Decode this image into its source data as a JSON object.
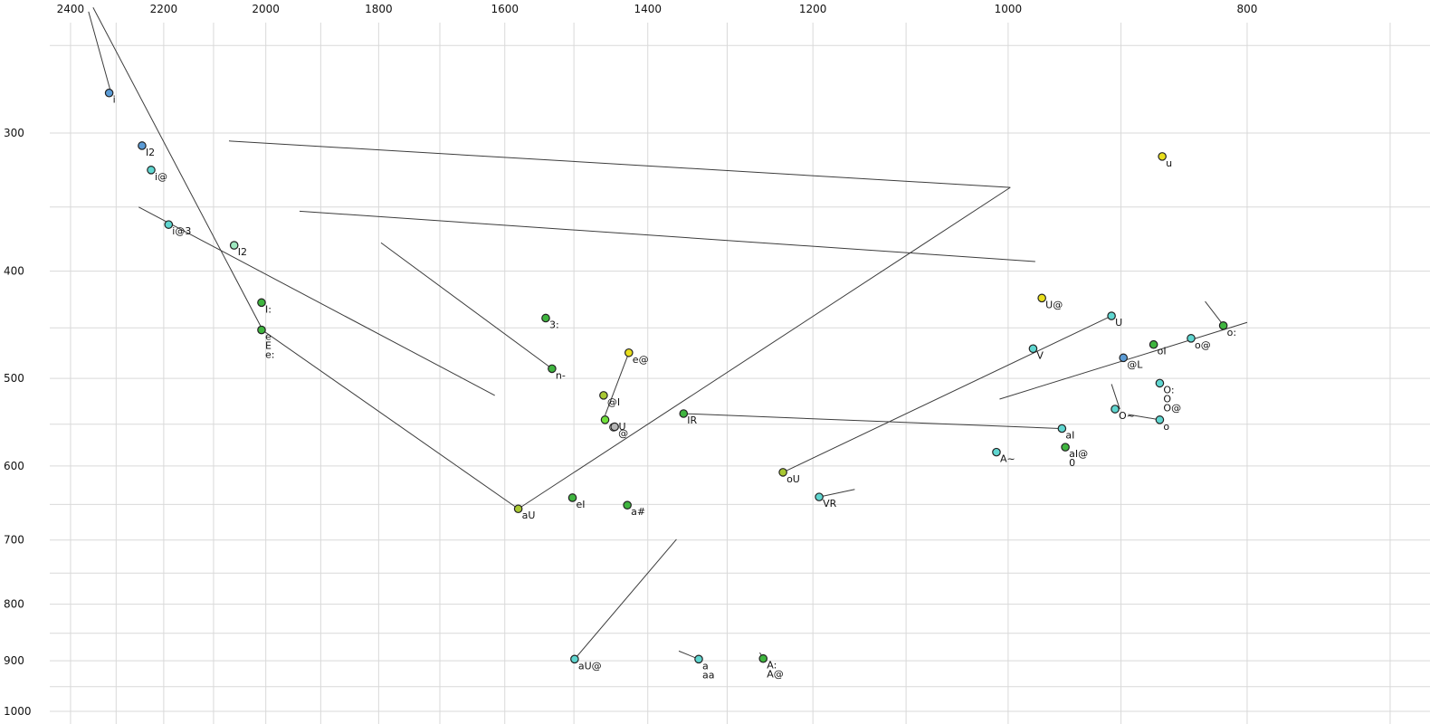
{
  "chart_data": {
    "type": "scatter",
    "title": "",
    "description": "Vowel formant plot (F2 horizontal reversed log axis, F1 vertical inverted log axis) with diphthong trajectory lines",
    "x_axis": {
      "scale": "log",
      "reversed": true,
      "tick_labels": [
        "2400",
        "2200",
        "2000",
        "1800",
        "1600",
        "1400",
        "1200",
        "1000",
        "800"
      ],
      "grid_from": 2400,
      "grid_to": 700,
      "grid_step": 100
    },
    "y_axis": {
      "scale": "log",
      "inverted": true,
      "tick_labels": [
        "300",
        "400",
        "500",
        "600",
        "700",
        "800",
        "900",
        "1000"
      ],
      "grid_from": 250,
      "grid_to": 1000,
      "grid_step": 50
    },
    "colors": {
      "blue": "#5b9bd5",
      "cyan": "#5fd6d0",
      "green": "#3fb53f",
      "yellowgreen": "#a8c832",
      "yellow": "#e8de1c",
      "lime": "#6fe03a",
      "mint": "#9fe8c0",
      "gray": "#b5b5b5",
      "grid": "#d9d9d9",
      "line": "#3c3c3c",
      "label": "#111111"
    },
    "points": [
      {
        "labels": [
          "i"
        ],
        "f2": 2315,
        "f1": 276,
        "color": "blue"
      },
      {
        "labels": [
          "I2"
        ],
        "f2": 2245,
        "f1": 308,
        "color": "blue"
      },
      {
        "labels": [
          "i@"
        ],
        "f2": 2226,
        "f1": 324,
        "color": "cyan"
      },
      {
        "labels": [
          "i@3"
        ],
        "f2": 2190,
        "f1": 363,
        "color": "cyan"
      },
      {
        "labels": [
          "I2"
        ],
        "f2": 2060,
        "f1": 379,
        "color": "mint",
        "label_color": "#94b6e4"
      },
      {
        "labels": [
          "I:"
        ],
        "f2": 2008,
        "f1": 427,
        "color": "green"
      },
      {
        "labels": [
          "e",
          "E",
          "e:"
        ],
        "f2": 2008,
        "f1": 452,
        "color": "green"
      },
      {
        "labels": [
          "3:"
        ],
        "f2": 1540,
        "f1": 441,
        "color": "green"
      },
      {
        "labels": [
          "n-"
        ],
        "f2": 1531,
        "f1": 490,
        "color": "green"
      },
      {
        "labels": [
          "@I"
        ],
        "f2": 1459,
        "f1": 518,
        "color": "yellowgreen"
      },
      {
        "labels": [
          "e@"
        ],
        "f2": 1425,
        "f1": 474,
        "color": "yellow"
      },
      {
        "labels": [
          "@U"
        ],
        "f2": 1457,
        "f1": 545,
        "color": "lime"
      },
      {
        "labels": [
          "@"
        ],
        "f2": 1444,
        "f1": 553,
        "color": "gray",
        "label_color": "#9a9a9a"
      },
      {
        "labels": [
          "IR"
        ],
        "f2": 1354,
        "f1": 538,
        "color": "green"
      },
      {
        "labels": [
          "oU"
        ],
        "f2": 1234,
        "f1": 608,
        "color": "yellowgreen"
      },
      {
        "labels": [
          "VR"
        ],
        "f2": 1193,
        "f1": 640,
        "color": "cyan"
      },
      {
        "labels": [
          "aU"
        ],
        "f2": 1580,
        "f1": 656,
        "color": "yellowgreen"
      },
      {
        "labels": [
          "eI"
        ],
        "f2": 1502,
        "f1": 641,
        "color": "green"
      },
      {
        "labels": [
          "a#"
        ],
        "f2": 1427,
        "f1": 651,
        "color": "green"
      },
      {
        "labels": [
          "aU@"
        ],
        "f2": 1499,
        "f1": 897,
        "color": "cyan"
      },
      {
        "labels": [
          "a",
          "aa"
        ],
        "f2": 1335,
        "f1": 897,
        "color": "cyan"
      },
      {
        "labels": [
          "A:",
          "A@"
        ],
        "f2": 1257,
        "f1": 896,
        "color": "green"
      },
      {
        "labels": [
          "U@"
        ],
        "f2": 969,
        "f1": 423,
        "color": "yellow"
      },
      {
        "labels": [
          "U"
        ],
        "f2": 908,
        "f1": 439,
        "color": "cyan"
      },
      {
        "labels": [
          "u"
        ],
        "f2": 866,
        "f1": 315,
        "color": "yellow"
      },
      {
        "labels": [
          "V"
        ],
        "f2": 977,
        "f1": 470,
        "color": "cyan"
      },
      {
        "labels": [
          "@L"
        ],
        "f2": 898,
        "f1": 479,
        "color": "blue"
      },
      {
        "labels": [
          "oI"
        ],
        "f2": 873,
        "f1": 466,
        "color": "green"
      },
      {
        "labels": [
          "o@"
        ],
        "f2": 843,
        "f1": 460,
        "color": "cyan"
      },
      {
        "labels": [
          "o:"
        ],
        "f2": 818,
        "f1": 448,
        "color": "green"
      },
      {
        "labels": [
          "O:",
          "O",
          "O@"
        ],
        "f2": 868,
        "f1": 505,
        "color": "cyan"
      },
      {
        "labels": [
          "O~"
        ],
        "f2": 905,
        "f1": 533,
        "color": "cyan"
      },
      {
        "labels": [
          "o"
        ],
        "f2": 868,
        "f1": 545,
        "color": "cyan"
      },
      {
        "labels": [
          "aI"
        ],
        "f2": 951,
        "f1": 555,
        "color": "cyan"
      },
      {
        "labels": [
          "aI@",
          "0"
        ],
        "f2": 948,
        "f1": 577,
        "color": "green"
      },
      {
        "labels": [
          "A~"
        ],
        "f2": 1011,
        "f1": 583,
        "color": "cyan"
      }
    ],
    "segments": [
      [
        2360,
        233,
        2313,
        274
      ],
      [
        2350,
        231,
        2007,
        451
      ],
      [
        2252,
        350,
        1615,
        518
      ],
      [
        2070,
        305,
        998,
        336
      ],
      [
        1938,
        353,
        975,
        392
      ],
      [
        1796,
        377,
        1531,
        490
      ],
      [
        1425,
        474,
        1457,
        540
      ],
      [
        998,
        336,
        1580,
        656
      ],
      [
        1234,
        608,
        908,
        439
      ],
      [
        1355,
        538,
        953,
        555
      ],
      [
        2007,
        452,
        1580,
        656
      ],
      [
        1008,
        522,
        800,
        445
      ],
      [
        1499,
        897,
        1363,
        699
      ],
      [
        1360,
        882,
        1335,
        897
      ],
      [
        1193,
        640,
        1154,
        630
      ],
      [
        908,
        506,
        901,
        533
      ],
      [
        894,
        539,
        868,
        545
      ],
      [
        832,
        426,
        817,
        449
      ],
      [
        1261,
        885,
        1257,
        896
      ]
    ]
  }
}
